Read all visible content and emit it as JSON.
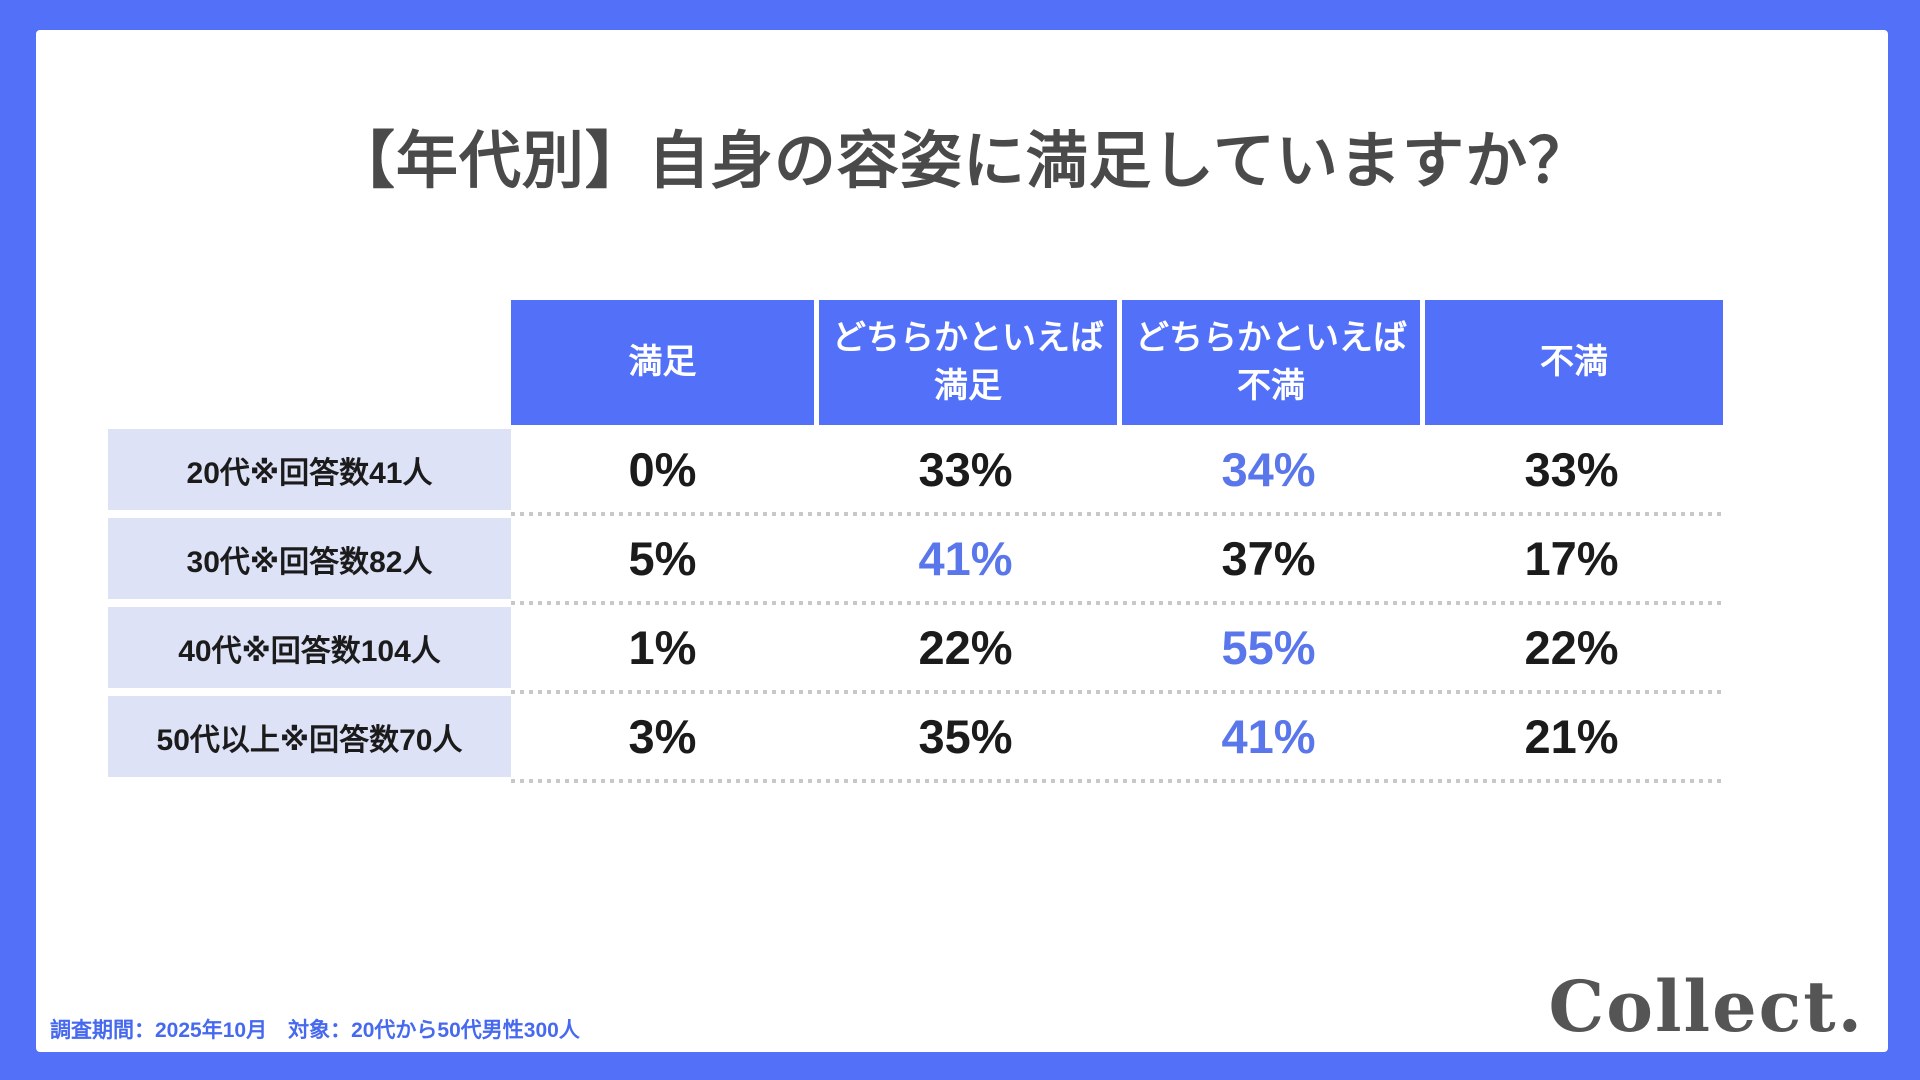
{
  "theme": {
    "accent": "#5271f8",
    "card_bg": "#ffffff",
    "label_bg": "#dee2f7",
    "highlight_text": "#5a76eb",
    "title_color": "#4a4a4a",
    "logo_color": "#555555",
    "footer_color": "#4669f0",
    "dot_color": "#c8c8c8",
    "text_color": "#1b1b1b"
  },
  "title": "【年代別】自身の容姿に満足していますか？",
  "chart_data": {
    "type": "table",
    "title": "【年代別】自身の容姿に満足していますか？",
    "columns": [
      "満足",
      "どちらかといえば満足",
      "どちらかといえば不満",
      "不満"
    ],
    "columns_lines": [
      [
        "満足",
        ""
      ],
      [
        "どちらかといえば",
        "満足"
      ],
      [
        "どちらかといえば",
        "不満"
      ],
      [
        "不満",
        ""
      ]
    ],
    "rows": [
      {
        "label": "20代※回答数41人",
        "values": [
          "0%",
          "33%",
          "34%",
          "33%"
        ],
        "highlight_index": 2
      },
      {
        "label": "30代※回答数82人",
        "values": [
          "5%",
          "41%",
          "37%",
          "17%"
        ],
        "highlight_index": 1
      },
      {
        "label": "40代※回答数104人",
        "values": [
          "1%",
          "22%",
          "55%",
          "22%"
        ],
        "highlight_index": 2
      },
      {
        "label": "50代以上※回答数70人",
        "values": [
          "3%",
          "35%",
          "41%",
          "21%"
        ],
        "highlight_index": 2
      }
    ],
    "highlight_color": "#5a76eb",
    "legend_position": "none",
    "grid": "dotted-row-separators"
  },
  "footer": {
    "note": "調査期間：2025年10月　対象：20代から50代男性300人",
    "logo": "Collect."
  }
}
